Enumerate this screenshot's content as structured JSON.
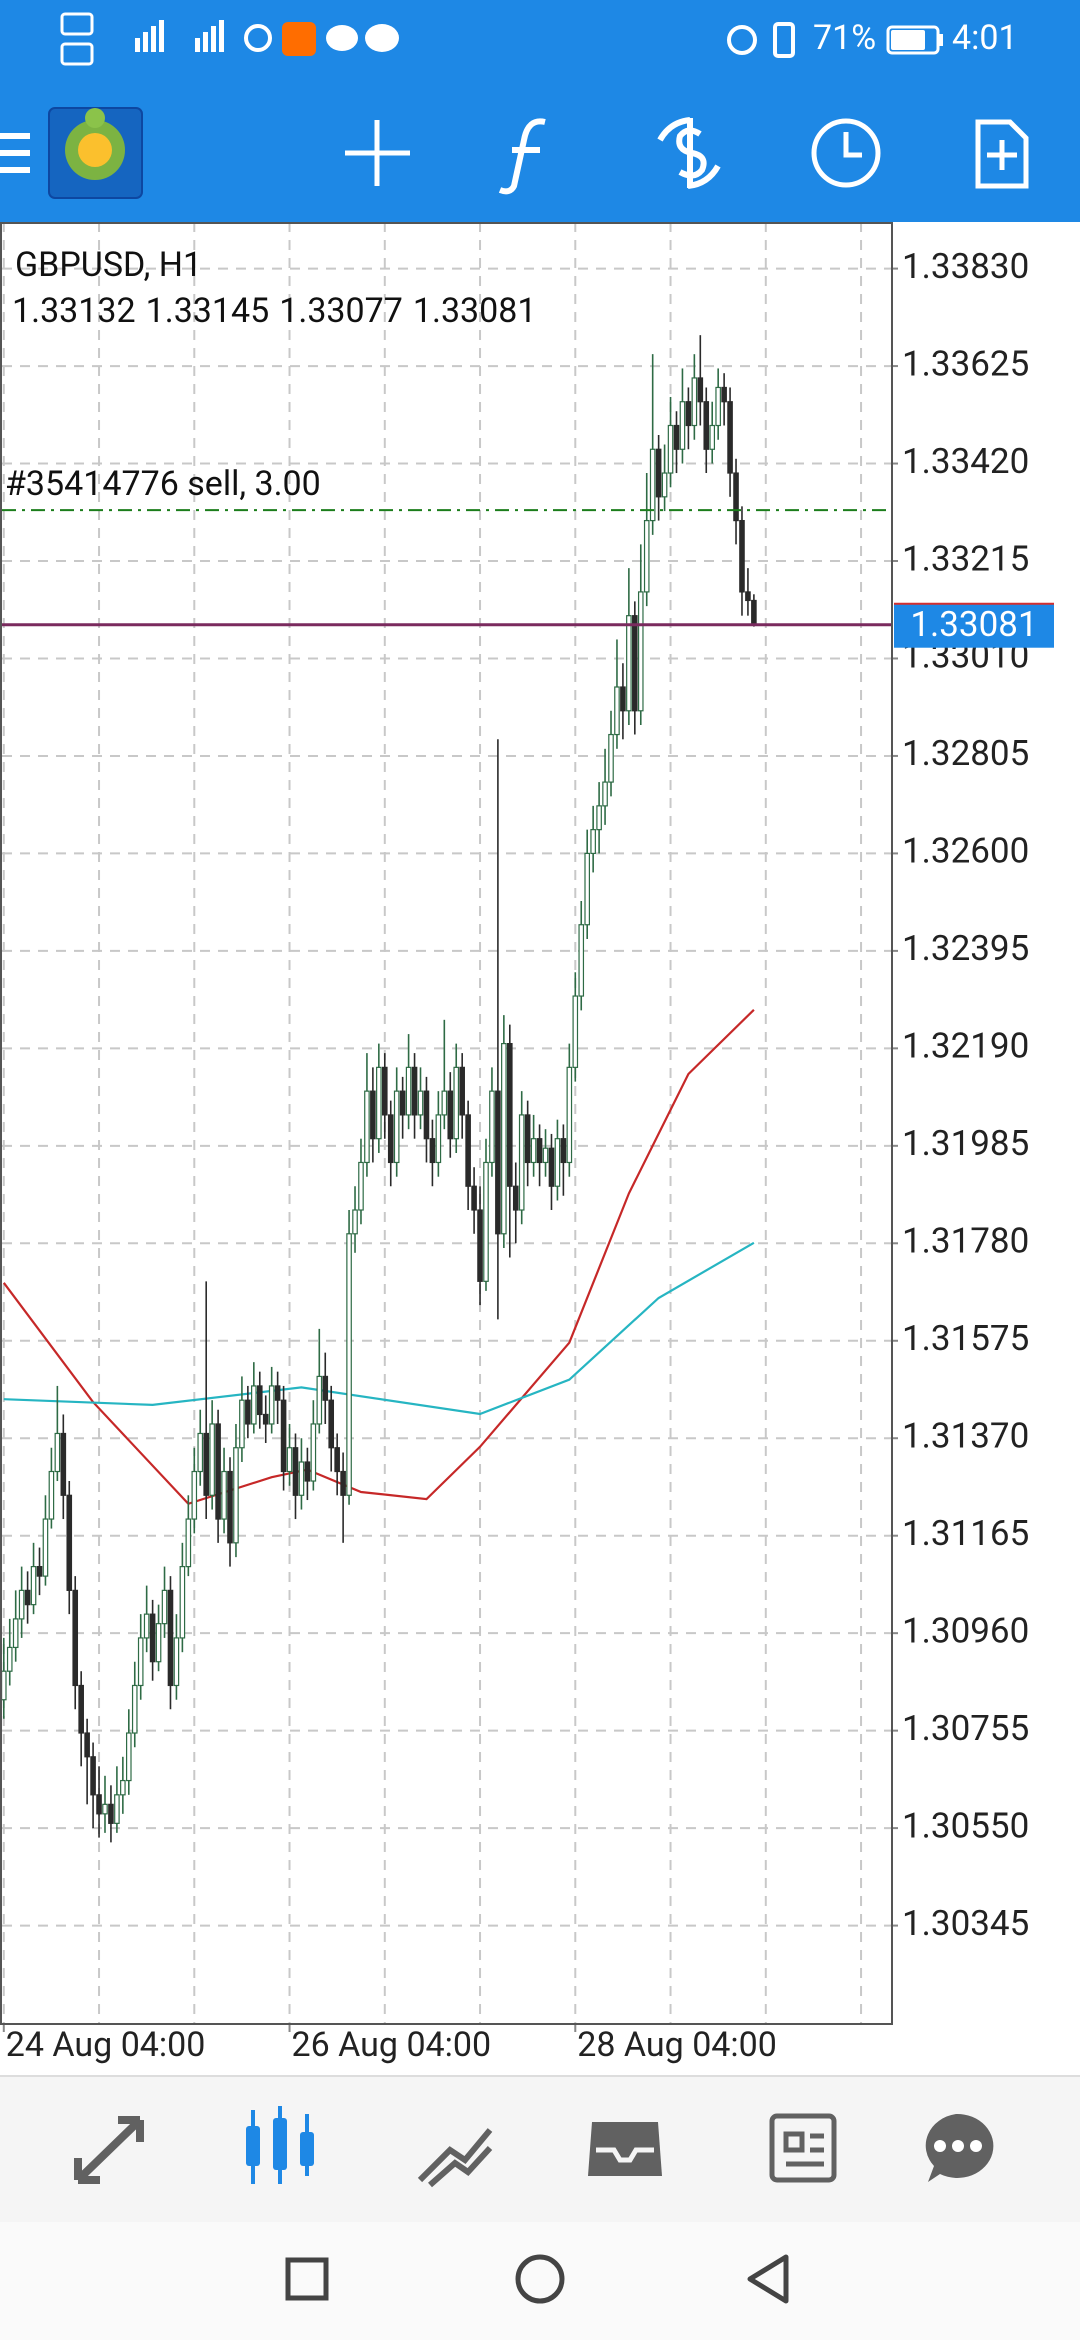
{
  "status_bar": {
    "battery": "71%",
    "time": "4:01"
  },
  "chart_data": {
    "type": "candlestick",
    "title": "GBPUSD, H1",
    "up_color": "#2e6b45",
    "down_color": "#2a2a2a",
    "candles": [
      [
        1.3082,
        1.3095,
        1.3078,
        1.3088
      ],
      [
        1.3088,
        1.3099,
        1.3085,
        1.3093
      ],
      [
        1.3093,
        1.3105,
        1.309,
        1.3099
      ],
      [
        1.3099,
        1.311,
        1.3095,
        1.3105
      ],
      [
        1.3105,
        1.3109,
        1.3098,
        1.3102
      ],
      [
        1.3102,
        1.3115,
        1.31,
        1.311
      ],
      [
        1.311,
        1.3114,
        1.3104,
        1.3108
      ],
      [
        1.3108,
        1.3125,
        1.3106,
        1.312
      ],
      [
        1.312,
        1.3135,
        1.3118,
        1.313
      ],
      [
        1.313,
        1.3148,
        1.3128,
        1.3138
      ],
      [
        1.3138,
        1.3142,
        1.312,
        1.3125
      ],
      [
        1.3125,
        1.3128,
        1.31,
        1.3105
      ],
      [
        1.3105,
        1.3108,
        1.308,
        1.3085
      ],
      [
        1.3085,
        1.3088,
        1.3068,
        1.3075
      ],
      [
        1.3075,
        1.3078,
        1.306,
        1.307
      ],
      [
        1.307,
        1.3073,
        1.3055,
        1.3062
      ],
      [
        1.3062,
        1.3068,
        1.3053,
        1.3058
      ],
      [
        1.3058,
        1.3066,
        1.3054,
        1.306
      ],
      [
        1.306,
        1.3064,
        1.3052,
        1.3056
      ],
      [
        1.3056,
        1.3068,
        1.3054,
        1.3062
      ],
      [
        1.3062,
        1.307,
        1.3058,
        1.3065
      ],
      [
        1.3065,
        1.308,
        1.3062,
        1.3075
      ],
      [
        1.3075,
        1.309,
        1.3072,
        1.3085
      ],
      [
        1.3085,
        1.31,
        1.3082,
        1.3095
      ],
      [
        1.3095,
        1.3106,
        1.3092,
        1.31
      ],
      [
        1.31,
        1.3103,
        1.3086,
        1.309
      ],
      [
        1.309,
        1.3102,
        1.3088,
        1.3098
      ],
      [
        1.3098,
        1.311,
        1.3095,
        1.3105
      ],
      [
        1.3105,
        1.3108,
        1.308,
        1.3085
      ],
      [
        1.3085,
        1.31,
        1.3082,
        1.3095
      ],
      [
        1.3095,
        1.3115,
        1.3092,
        1.311
      ],
      [
        1.311,
        1.3125,
        1.3108,
        1.312
      ],
      [
        1.312,
        1.3135,
        1.3117,
        1.313
      ],
      [
        1.313,
        1.3143,
        1.3127,
        1.3138
      ],
      [
        1.3138,
        1.317,
        1.312,
        1.3125
      ],
      [
        1.3125,
        1.3145,
        1.3122,
        1.314
      ],
      [
        1.314,
        1.3143,
        1.3115,
        1.312
      ],
      [
        1.312,
        1.3135,
        1.3117,
        1.313
      ],
      [
        1.313,
        1.3133,
        1.311,
        1.3115
      ],
      [
        1.3115,
        1.314,
        1.3112,
        1.3135
      ],
      [
        1.3135,
        1.315,
        1.3132,
        1.3145
      ],
      [
        1.3145,
        1.3148,
        1.3137,
        1.314
      ],
      [
        1.314,
        1.3153,
        1.3138,
        1.3148
      ],
      [
        1.3148,
        1.3151,
        1.3139,
        1.3142
      ],
      [
        1.3142,
        1.3146,
        1.3136,
        1.314
      ],
      [
        1.314,
        1.3152,
        1.3138,
        1.3148
      ],
      [
        1.3148,
        1.3151,
        1.314,
        1.3145
      ],
      [
        1.3145,
        1.3148,
        1.3126,
        1.313
      ],
      [
        1.313,
        1.314,
        1.3127,
        1.3135
      ],
      [
        1.3135,
        1.3138,
        1.312,
        1.3125
      ],
      [
        1.3125,
        1.3137,
        1.3122,
        1.3132
      ],
      [
        1.3132,
        1.3135,
        1.3124,
        1.3128
      ],
      [
        1.3128,
        1.3145,
        1.3126,
        1.314
      ],
      [
        1.314,
        1.316,
        1.3138,
        1.315
      ],
      [
        1.315,
        1.3155,
        1.314,
        1.3145
      ],
      [
        1.3145,
        1.3148,
        1.313,
        1.3135
      ],
      [
        1.3135,
        1.3138,
        1.3125,
        1.313
      ],
      [
        1.313,
        1.3134,
        1.3115,
        1.3125
      ],
      [
        1.3125,
        1.3185,
        1.3123,
        1.318
      ],
      [
        1.318,
        1.319,
        1.3176,
        1.3185
      ],
      [
        1.3185,
        1.32,
        1.3182,
        1.3195
      ],
      [
        1.3195,
        1.3218,
        1.3192,
        1.321
      ],
      [
        1.321,
        1.3215,
        1.3195,
        1.32
      ],
      [
        1.32,
        1.322,
        1.3197,
        1.3215
      ],
      [
        1.3215,
        1.3218,
        1.32,
        1.3205
      ],
      [
        1.3205,
        1.3208,
        1.319,
        1.3195
      ],
      [
        1.3195,
        1.3215,
        1.3192,
        1.321
      ],
      [
        1.321,
        1.3213,
        1.32,
        1.3205
      ],
      [
        1.3205,
        1.3222,
        1.3202,
        1.3215
      ],
      [
        1.3215,
        1.3218,
        1.32,
        1.3205
      ],
      [
        1.3205,
        1.3215,
        1.3202,
        1.321
      ],
      [
        1.321,
        1.3213,
        1.3195,
        1.32
      ],
      [
        1.32,
        1.3204,
        1.319,
        1.3195
      ],
      [
        1.3195,
        1.321,
        1.3192,
        1.3205
      ],
      [
        1.3205,
        1.3225,
        1.3202,
        1.321
      ],
      [
        1.321,
        1.3214,
        1.3196,
        1.32
      ],
      [
        1.32,
        1.322,
        1.3197,
        1.3215
      ],
      [
        1.3215,
        1.3218,
        1.32,
        1.3205
      ],
      [
        1.3205,
        1.3208,
        1.3185,
        1.319
      ],
      [
        1.319,
        1.3194,
        1.318,
        1.3185
      ],
      [
        1.3185,
        1.319,
        1.3165,
        1.317
      ],
      [
        1.317,
        1.32,
        1.3168,
        1.3195
      ],
      [
        1.3195,
        1.3215,
        1.3192,
        1.321
      ],
      [
        1.321,
        1.3284,
        1.3162,
        1.318
      ],
      [
        1.318,
        1.3226,
        1.3177,
        1.322
      ],
      [
        1.322,
        1.3224,
        1.3175,
        1.319
      ],
      [
        1.319,
        1.3195,
        1.3178,
        1.3185
      ],
      [
        1.3185,
        1.321,
        1.3182,
        1.3205
      ],
      [
        1.3205,
        1.3208,
        1.319,
        1.3195
      ],
      [
        1.3195,
        1.3205,
        1.3192,
        1.32
      ],
      [
        1.32,
        1.3203,
        1.319,
        1.3195
      ],
      [
        1.3195,
        1.3202,
        1.3192,
        1.3198
      ],
      [
        1.3198,
        1.3201,
        1.3185,
        1.319
      ],
      [
        1.319,
        1.3204,
        1.3187,
        1.32
      ],
      [
        1.32,
        1.3203,
        1.3188,
        1.3195
      ],
      [
        1.3195,
        1.322,
        1.3192,
        1.3215
      ],
      [
        1.3215,
        1.3235,
        1.3212,
        1.323
      ],
      [
        1.323,
        1.325,
        1.3227,
        1.3245
      ],
      [
        1.3245,
        1.3265,
        1.3242,
        1.326
      ],
      [
        1.326,
        1.327,
        1.3256,
        1.3265
      ],
      [
        1.3265,
        1.3275,
        1.326,
        1.327
      ],
      [
        1.327,
        1.3282,
        1.3266,
        1.3275
      ],
      [
        1.3275,
        1.329,
        1.3272,
        1.3285
      ],
      [
        1.3285,
        1.3305,
        1.3282,
        1.3295
      ],
      [
        1.3295,
        1.33,
        1.3284,
        1.329
      ],
      [
        1.329,
        1.332,
        1.3287,
        1.331
      ],
      [
        1.331,
        1.3313,
        1.3285,
        1.329
      ],
      [
        1.329,
        1.3325,
        1.3287,
        1.3315
      ],
      [
        1.3315,
        1.334,
        1.3312,
        1.333
      ],
      [
        1.333,
        1.3365,
        1.3327,
        1.3345
      ],
      [
        1.3345,
        1.3348,
        1.333,
        1.3335
      ],
      [
        1.3335,
        1.3346,
        1.3332,
        1.334
      ],
      [
        1.334,
        1.3356,
        1.3337,
        1.335
      ],
      [
        1.335,
        1.3353,
        1.334,
        1.3345
      ],
      [
        1.3345,
        1.3362,
        1.3342,
        1.3355
      ],
      [
        1.3355,
        1.3358,
        1.3345,
        1.335
      ],
      [
        1.335,
        1.3365,
        1.3347,
        1.336
      ],
      [
        1.336,
        1.3369,
        1.335,
        1.3355
      ],
      [
        1.3355,
        1.3358,
        1.334,
        1.3345
      ],
      [
        1.3345,
        1.3355,
        1.3342,
        1.335
      ],
      [
        1.335,
        1.3362,
        1.3347,
        1.3358
      ],
      [
        1.3358,
        1.3361,
        1.335,
        1.3355
      ],
      [
        1.3355,
        1.3358,
        1.3335,
        1.334
      ],
      [
        1.334,
        1.3343,
        1.3325,
        1.333
      ],
      [
        1.333,
        1.3333,
        1.331,
        1.3315
      ],
      [
        1.3315,
        1.332,
        1.331,
        1.33132
      ],
      [
        1.33132,
        1.33145,
        1.33077,
        1.33081
      ]
    ],
    "series": [
      {
        "color": "#c62828",
        "x": [
          0,
          15,
          31,
          45,
          51,
          60,
          71,
          80,
          95,
          105,
          115,
          126
        ],
        "values": [
          1.31697,
          1.31446,
          1.31232,
          1.31288,
          1.31304,
          1.31257,
          1.31242,
          1.31352,
          1.31571,
          1.31885,
          1.32136,
          1.32271
        ]
      },
      {
        "color": "#26b5c2",
        "x": [
          0,
          25,
          50,
          80,
          95,
          110,
          126
        ],
        "values": [
          1.31452,
          1.3144,
          1.31477,
          1.31421,
          1.31493,
          1.31665,
          1.31781
        ]
      }
    ],
    "bid": 1.33081,
    "bid_color": "#7a2a5e",
    "order": {
      "label": "#35414776 sell, 3.00",
      "price": 1.33322,
      "color": "#1b7d1b"
    },
    "ylim": [
      1.30138,
      1.33928
    ],
    "yticks": [
      {
        "value": 1.3383,
        "label": "1.33830"
      },
      1.33625,
      {
        "value": 1.3342,
        "label": "1.33420"
      },
      1.33215,
      {
        "value": 1.3301,
        "label": "1.33010"
      },
      1.32805,
      {
        "value": 1.326,
        "label": "1.32600"
      },
      1.32395,
      {
        "value": 1.3219,
        "label": "1.32190"
      },
      1.31985,
      {
        "value": 1.3178,
        "label": "1.31780"
      },
      1.31575,
      {
        "value": 1.3137,
        "label": "1.31370"
      },
      1.31165,
      {
        "value": 1.3096,
        "label": "1.30960"
      },
      1.30755,
      {
        "value": 1.3055,
        "label": "1.30550"
      },
      1.30345
    ],
    "xlim": [
      -0.3,
      149.2
    ],
    "xticks": [
      {
        "value": 0,
        "label": "24 Aug 04:00"
      },
      {
        "value": 48,
        "label": "26 Aug 04:00"
      },
      {
        "value": 96,
        "label": "28 Aug 04:00"
      }
    ],
    "grid": true
  }
}
